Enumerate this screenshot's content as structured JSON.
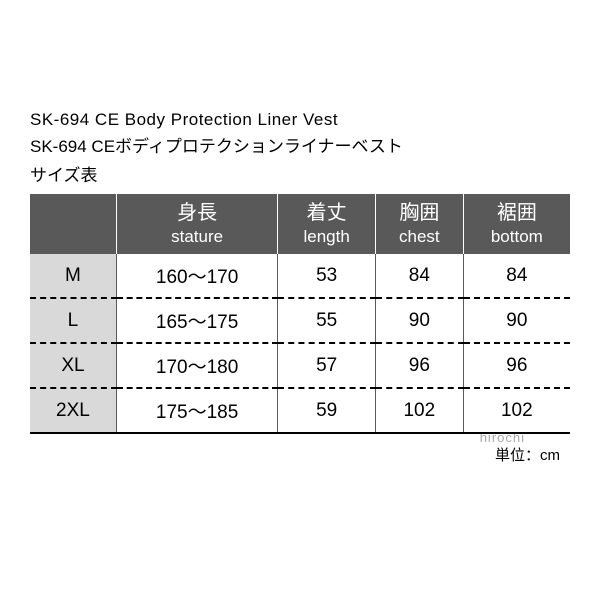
{
  "titles": {
    "en": "SK-694 CE Body Protection Liner Vest",
    "jp": "SK-694 CEボディプロテクションライナーベスト",
    "subtitle": "サイズ表"
  },
  "table": {
    "headers": [
      {
        "jp": "",
        "en": ""
      },
      {
        "jp": "身長",
        "en": "stature"
      },
      {
        "jp": "着丈",
        "en": "length"
      },
      {
        "jp": "胸囲",
        "en": "chest"
      },
      {
        "jp": "裾囲",
        "en": "bottom"
      }
    ],
    "rows": [
      {
        "size": "M",
        "stature": "160～170",
        "length": "53",
        "chest": "84",
        "bottom": "84"
      },
      {
        "size": "L",
        "stature": "165～175",
        "length": "55",
        "chest": "90",
        "bottom": "90"
      },
      {
        "size": "XL",
        "stature": "170～180",
        "length": "57",
        "chest": "96",
        "bottom": "96"
      },
      {
        "size": "2XL",
        "stature": "175～185",
        "length": "59",
        "chest": "102",
        "bottom": "102"
      }
    ]
  },
  "unit_label": "単位：cm",
  "watermark": "hirochi",
  "style": {
    "header_bg": "#595959",
    "header_fg": "#ffffff",
    "size_col_bg": "#d9d9d9",
    "divider_color": "#595959",
    "dash_color": "#000000",
    "jp_fontsize": 20,
    "en_fontsize": 17,
    "cell_fontsize": 19
  }
}
